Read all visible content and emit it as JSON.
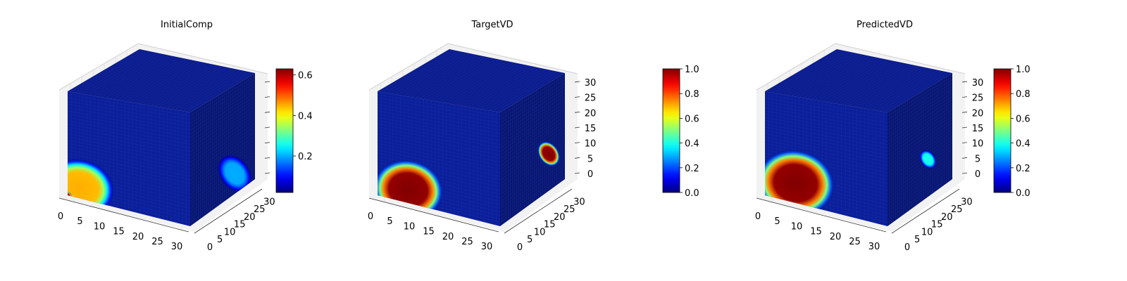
{
  "chart_data": [
    {
      "type": "voxel3d",
      "title": "InitialComp",
      "xticks": [
        "0",
        "5",
        "10",
        "15",
        "20",
        "25",
        "30"
      ],
      "yticks": [
        "0",
        "5",
        "10",
        "15",
        "20",
        "25",
        "30"
      ],
      "zticks": [
        "",
        "",
        "",
        "",
        "",
        "",
        ""
      ],
      "grid_size": 32,
      "colormap": "jet",
      "colorbar": {
        "min": 0.02,
        "max": 0.63,
        "ticks": [
          "0.2",
          "0.4",
          "0.6"
        ],
        "tick_values": [
          0.2,
          0.4,
          0.6
        ]
      },
      "features": [
        {
          "face": "front",
          "u": 3,
          "v": 3,
          "radius": 9,
          "peak": 0.45,
          "note": "diffuse blob near origin"
        },
        {
          "face": "front",
          "u": 0,
          "v": 0,
          "radius": 1,
          "peak": 0.6
        },
        {
          "face": "side",
          "u": 22,
          "v": 6,
          "radius": 6,
          "peak": 0.2
        }
      ],
      "background_value": 0.05
    },
    {
      "type": "voxel3d",
      "title": "TargetVD",
      "xticks": [
        "0",
        "5",
        "10",
        "15",
        "20",
        "25",
        "30"
      ],
      "yticks": [
        "0",
        "5",
        "10",
        "15",
        "20",
        "25",
        "30"
      ],
      "zticks": [
        "0",
        "5",
        "10",
        "15",
        "20",
        "25",
        "30"
      ],
      "grid_size": 32,
      "colormap": "jet",
      "colorbar": {
        "min": 0.0,
        "max": 1.0,
        "ticks": [
          "0.0",
          "0.2",
          "0.4",
          "0.6",
          "0.8",
          "1.0"
        ],
        "tick_values": [
          0.0,
          0.2,
          0.4,
          0.6,
          0.8,
          1.0
        ]
      },
      "features": [
        {
          "face": "front",
          "u": 8,
          "v": 4,
          "radius": 9,
          "peak": 1.0
        },
        {
          "face": "side",
          "u": 24,
          "v": 11,
          "radius": 4,
          "peak": 1.0
        }
      ],
      "background_value": 0.02
    },
    {
      "type": "voxel3d",
      "title": "PredictedVD",
      "xticks": [
        "0",
        "5",
        "10",
        "15",
        "20",
        "25",
        "30"
      ],
      "yticks": [
        "0",
        "5",
        "10",
        "15",
        "20",
        "25",
        "30"
      ],
      "zticks": [
        "0",
        "5",
        "10",
        "15",
        "20",
        "25",
        "30"
      ],
      "grid_size": 32,
      "colormap": "jet",
      "colorbar": {
        "min": 0.0,
        "max": 1.0,
        "ticks": [
          "0.0",
          "0.2",
          "0.4",
          "0.6",
          "0.8",
          "1.0"
        ],
        "tick_values": [
          0.0,
          0.2,
          0.4,
          0.6,
          0.8,
          1.0
        ]
      },
      "features": [
        {
          "face": "front",
          "u": 8,
          "v": 6,
          "radius": 10,
          "peak": 1.0
        },
        {
          "face": "side",
          "u": 20,
          "v": 11,
          "radius": 3,
          "peak": 0.4
        }
      ],
      "background_value": 0.02
    }
  ]
}
